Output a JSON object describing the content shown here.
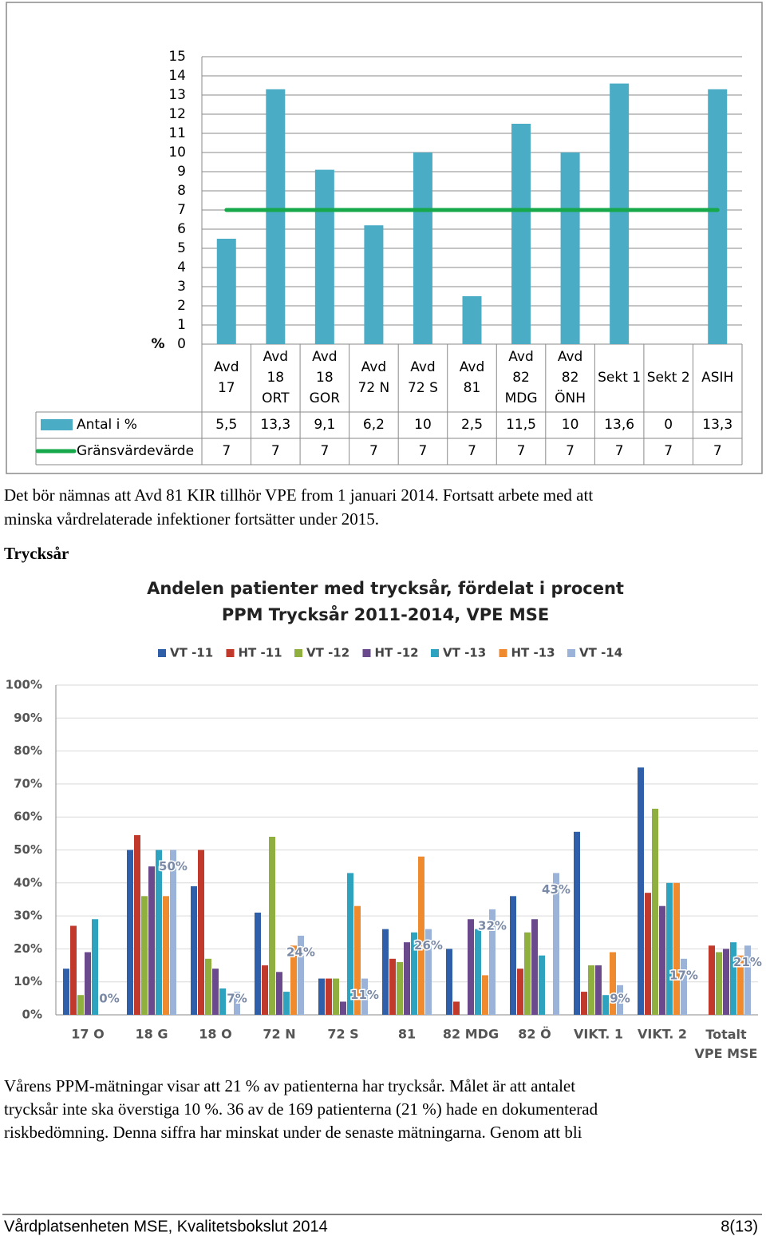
{
  "chart_data": [
    {
      "type": "bar",
      "ylabel": "%",
      "categories": [
        "Avd\n17",
        "Avd\n18\nORT",
        "Avd\n18\nGOR",
        "Avd\n72 N",
        "Avd\n72 S",
        "Avd\n81",
        "Avd\n82\nMDG",
        "Avd\n82\nÖNH",
        "Sekt 1",
        "Sekt 2",
        "ASIH"
      ],
      "series": [
        {
          "name": "Antal i %",
          "color": "#4bacc6",
          "values": [
            5.5,
            13.3,
            9.1,
            6.2,
            10,
            2.5,
            11.5,
            10,
            13.6,
            0,
            13.3
          ],
          "value_labels": [
            "5,5",
            "13,3",
            "9,1",
            "6,2",
            "10",
            "2,5",
            "11,5",
            "10",
            "13,6",
            "0",
            "13,3"
          ]
        },
        {
          "name": "Gränsvärdevärde",
          "type": "line",
          "color": "#17a84b",
          "values": [
            7,
            7,
            7,
            7,
            7,
            7,
            7,
            7,
            7,
            7,
            7
          ]
        }
      ],
      "ylim": [
        0,
        15
      ],
      "yticks": [
        0,
        1,
        2,
        3,
        4,
        5,
        6,
        7,
        8,
        9,
        10,
        11,
        12,
        13,
        14,
        15
      ],
      "grid": true
    },
    {
      "type": "bar",
      "title": "Andelen patienter med trycksår, fördelat i procent",
      "subtitle": "PPM Trycksår 2011-2014, VPE MSE",
      "categories": [
        "17 O",
        "18 G",
        "18 O",
        "72 N",
        "72 S",
        "81",
        "82 MDG",
        "82 Ö",
        "VIKT. 1",
        "VIKT. 2",
        "Totalt\nVPE MSE"
      ],
      "series": [
        {
          "name": "VT -11",
          "color": "#2e5fa8",
          "values": [
            14,
            50,
            39,
            31,
            11,
            26,
            20,
            36,
            55.5,
            75,
            0
          ]
        },
        {
          "name": "HT -11",
          "color": "#c0392b",
          "values": [
            27,
            54.5,
            50,
            15,
            11,
            17,
            4,
            14,
            7,
            37,
            21
          ]
        },
        {
          "name": "VT -12",
          "color": "#8faf3e",
          "values": [
            6,
            36,
            17,
            54,
            11,
            16,
            0,
            25,
            15,
            62.5,
            19
          ]
        },
        {
          "name": "HT -12",
          "color": "#6a4a8c",
          "values": [
            19,
            45,
            14,
            13,
            4,
            22,
            29,
            29,
            15,
            33,
            20
          ]
        },
        {
          "name": "VT -13",
          "color": "#2ea3c0",
          "values": [
            29,
            50,
            8,
            7,
            43,
            25,
            26,
            18,
            6,
            40,
            22
          ]
        },
        {
          "name": "HT -13",
          "color": "#f08a2e",
          "values": [
            0,
            36,
            0,
            21,
            33,
            48,
            12,
            0,
            19,
            40,
            18
          ]
        },
        {
          "name": "VT -14",
          "color": "#9bb3d8",
          "values": [
            0,
            50,
            7,
            24,
            11,
            26,
            32,
            43,
            9,
            17,
            21
          ],
          "value_labels": [
            "0%",
            "50%",
            "7%",
            "24%",
            "11%",
            "26%",
            "32%",
            "43%",
            "9%",
            "17%",
            "21%"
          ]
        }
      ],
      "ylim": [
        0,
        100
      ],
      "yticks": [
        {
          "value": 0,
          "label": "0%"
        },
        {
          "value": 10,
          "label": "10%"
        },
        {
          "value": 20,
          "label": "20%"
        },
        {
          "value": 30,
          "label": "30%"
        },
        {
          "value": 40,
          "label": "40%"
        },
        {
          "value": 50,
          "label": "50%"
        },
        {
          "value": 60,
          "label": "60%"
        },
        {
          "value": 70,
          "label": "70%"
        },
        {
          "value": 80,
          "label": "80%"
        },
        {
          "value": 90,
          "label": "90%"
        },
        {
          "value": 100,
          "label": "100%"
        }
      ],
      "grid": true,
      "legend": "top"
    }
  ],
  "paragraph_1": [
    "Det bör nämnas att Avd 81 KIR tillhör VPE from 1 januari 2014. Fortsatt arbete med att",
    "minska vårdrelaterade infektioner fortsätter under 2015."
  ],
  "heading": "Trycksår",
  "paragraph_2": [
    "Vårens PPM-mätningar visar att 21 % av patienterna har trycksår. Målet är att antalet",
    "trycksår inte ska överstiga 10 %. 36 av de 169 patienterna (21 %) hade en dokumenterad",
    "riskbedömning. Denna siffra har minskat under de senaste mätningarna. Genom att bli"
  ],
  "footer": {
    "left": "Vårdplatsenheten MSE, Kvalitetsbokslut 2014",
    "right": "8(13)"
  }
}
